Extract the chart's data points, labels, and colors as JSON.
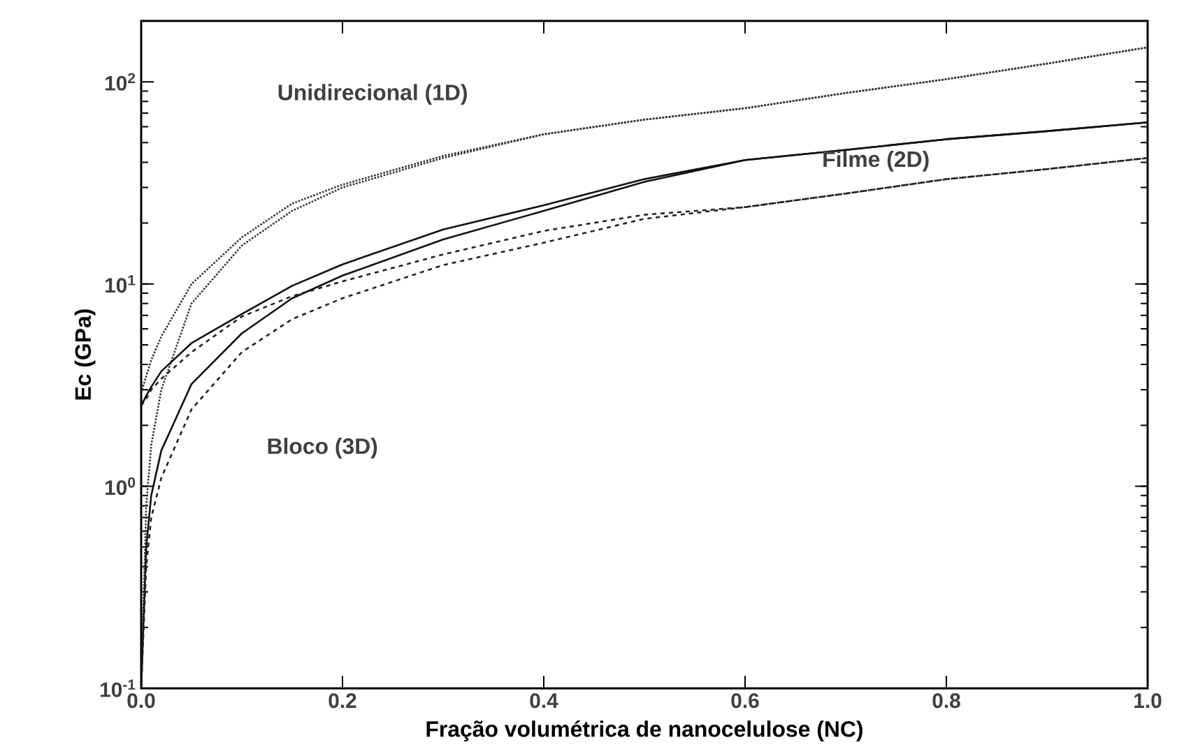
{
  "chart_data": {
    "type": "line",
    "xlabel": "Fração volumétrica de nanocelulose (NC)",
    "ylabel": "Ec (GPa)",
    "log": "y",
    "x": [
      0,
      0.005,
      0.01,
      0.02,
      0.05,
      0.1,
      0.15,
      0.2,
      0.3,
      0.4,
      0.5,
      0.6,
      0.7,
      0.8,
      0.9,
      1.0
    ],
    "series": [
      {
        "color": "#333333",
        "line_style": "dotted",
        "values": [
          2.9,
          3.5,
          4.2,
          5.5,
          10,
          17,
          25,
          31,
          43,
          55,
          65,
          74,
          88,
          103,
          123,
          148
        ]
      },
      {
        "color": "#333333",
        "line_style": "dotted",
        "values": [
          0.1,
          0.8,
          1.6,
          3,
          8,
          15.5,
          23,
          30,
          42,
          55,
          65,
          74,
          88,
          103,
          123,
          148
        ]
      },
      {
        "color": "#111111",
        "line_style": "solid",
        "values": [
          2.5,
          2.8,
          3.1,
          3.7,
          5.1,
          7.1,
          9.8,
          12.5,
          18.6,
          24.5,
          33,
          41,
          46,
          52,
          57,
          63
        ]
      },
      {
        "color": "#111111",
        "line_style": "solid",
        "values": [
          0.1,
          0.5,
          0.9,
          1.5,
          3.2,
          5.7,
          8.5,
          11,
          16.6,
          23,
          32,
          41,
          46,
          52,
          57,
          63
        ]
      },
      {
        "color": "#222222",
        "line_style": "dashed",
        "values": [
          2.5,
          2.7,
          3.0,
          3.4,
          4.6,
          6.9,
          8.7,
          10.3,
          14,
          18.3,
          22,
          24,
          28,
          33,
          37,
          42
        ]
      },
      {
        "color": "#222222",
        "line_style": "dashed",
        "values": [
          0.1,
          0.4,
          0.7,
          1.1,
          2.4,
          4.6,
          6.7,
          8.5,
          12.4,
          16,
          21,
          24,
          28,
          33,
          37,
          42
        ]
      }
    ],
    "xlim": [
      0,
      1.0
    ],
    "ylim": [
      0.1,
      200
    ],
    "xticks": [
      {
        "value": 0,
        "label": "0.0"
      },
      0.2,
      0.4,
      0.6,
      0.8,
      {
        "value": 1.0,
        "label": "1.0"
      }
    ],
    "yticks": [
      {
        "value": 0.1,
        "label": "10$^{-1}$"
      },
      {
        "value": 1,
        "label": "10$^{0}$"
      },
      {
        "value": 10,
        "label": "10$^{1}$"
      },
      {
        "value": 100,
        "label": "10$^{2}$"
      }
    ],
    "annotations": [
      "Unidirecional (1D)",
      "Filme (2D)",
      "Bloco (3D)"
    ]
  }
}
